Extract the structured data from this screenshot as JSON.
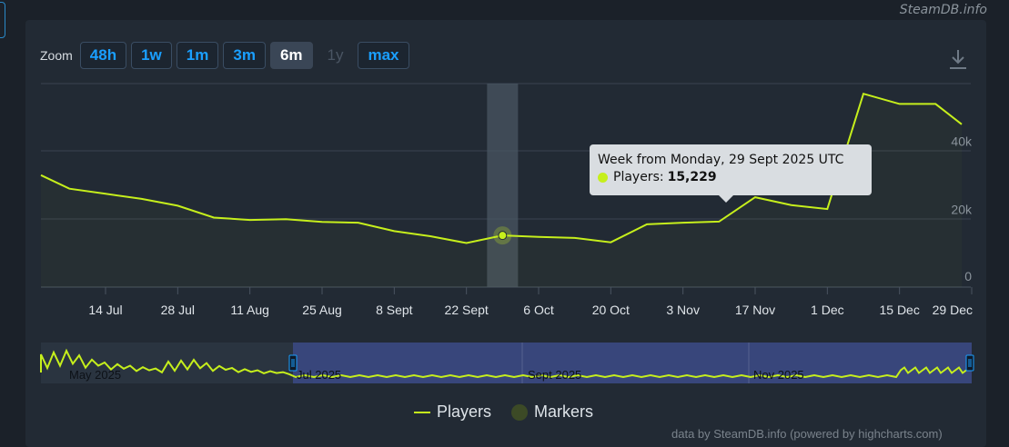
{
  "header": {
    "brand": "SteamDB.info"
  },
  "zoom": {
    "label": "Zoom",
    "buttons": [
      {
        "label": "48h",
        "state": "normal"
      },
      {
        "label": "1w",
        "state": "normal"
      },
      {
        "label": "1m",
        "state": "normal"
      },
      {
        "label": "3m",
        "state": "normal"
      },
      {
        "label": "6m",
        "state": "active"
      },
      {
        "label": "1y",
        "state": "disabled"
      },
      {
        "label": "max",
        "state": "normal"
      }
    ]
  },
  "icons": {
    "download": "download-icon"
  },
  "colors": {
    "series": "#c6ef1c",
    "navigator_selection": "#3b4a86",
    "tooltip_bg": "#d9dde1"
  },
  "tooltip": {
    "title": "Week from Monday, 29 Sept 2025 UTC",
    "series_label": "Players:",
    "value": "15,229"
  },
  "legend": {
    "players": "Players",
    "markers": "Markers"
  },
  "credit": "data by SteamDB.info (powered by highcharts.com)",
  "chart_data": {
    "type": "line",
    "title": "",
    "xlabel": "",
    "ylabel": "",
    "y_axis_side": "right",
    "yticks": [
      "0",
      "20k",
      "40k"
    ],
    "ylim": [
      0,
      60000
    ],
    "xticks": [
      "14 Jul",
      "28 Jul",
      "11 Aug",
      "25 Aug",
      "8 Sept",
      "22 Sept",
      "6 Oct",
      "20 Oct",
      "3 Nov",
      "17 Nov",
      "1 Dec",
      "15 Dec",
      "29 Dec"
    ],
    "grid": true,
    "highlighted_point": {
      "x": "2025-09-29",
      "y": 15229
    },
    "series": [
      {
        "name": "Players",
        "x": [
          "2025-06-30",
          "2025-07-07",
          "2025-07-14",
          "2025-07-21",
          "2025-07-28",
          "2025-08-04",
          "2025-08-11",
          "2025-08-18",
          "2025-08-25",
          "2025-09-01",
          "2025-09-08",
          "2025-09-15",
          "2025-09-22",
          "2025-09-29",
          "2025-10-06",
          "2025-10-13",
          "2025-10-20",
          "2025-10-27",
          "2025-11-03",
          "2025-11-10",
          "2025-11-17",
          "2025-11-24",
          "2025-12-01",
          "2025-12-08",
          "2025-12-15",
          "2025-12-22",
          "2025-12-29"
        ],
        "values": [
          33000,
          29000,
          27500,
          26000,
          24000,
          20500,
          19800,
          20000,
          19200,
          19000,
          16500,
          15000,
          13000,
          15229,
          14800,
          14500,
          13200,
          18500,
          19000,
          19300,
          26500,
          24200,
          23000,
          57000,
          54000,
          54000,
          48000
        ]
      }
    ],
    "navigator": {
      "labels": [
        "May 2025",
        "Jul 2025",
        "Sept 2025",
        "Nov 2025"
      ],
      "selection": [
        "2025-06-30",
        "2025-12-29"
      ]
    }
  }
}
